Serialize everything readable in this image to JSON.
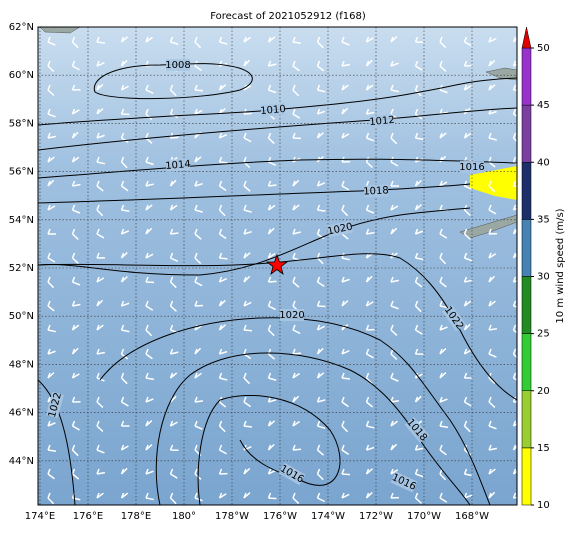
{
  "title": "Forecast of 2021052912 (f168)",
  "map": {
    "lat_labels": [
      "62°N",
      "60°N",
      "58°N",
      "56°N",
      "54°N",
      "52°N",
      "50°N",
      "48°N",
      "46°N",
      "44°N"
    ],
    "lon_labels": [
      "174°E",
      "176°E",
      "178°E",
      "180°",
      "178°W",
      "176°W",
      "174°W",
      "172°W",
      "170°W",
      "168°W"
    ],
    "contour_labels": [
      "1008",
      "1010",
      "1012",
      "1014",
      "1016",
      "1018",
      "1020",
      "1020",
      "1022",
      "1022",
      "1018",
      "1016",
      "1016"
    ]
  },
  "colorbar": {
    "label": "10 m wind speed (m/s)",
    "range": [
      10,
      50
    ],
    "ticks": [
      10,
      15,
      20,
      25,
      30,
      35,
      40,
      45,
      50
    ],
    "colors": [
      "#ffff00",
      "#9acd32",
      "#32cd32",
      "#228b22",
      "#4682b4",
      "#1c2f6b",
      "#7b3fa0",
      "#9932cc"
    ],
    "extend_color": "#e00000"
  }
}
